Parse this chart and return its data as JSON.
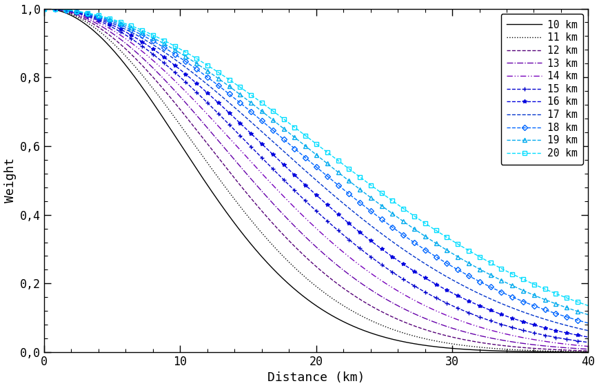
{
  "x_min": 0,
  "x_max": 40,
  "xlabel": "Distance (km)",
  "ylabel": "Weight",
  "xlim": [
    0,
    40
  ],
  "ylim": [
    0.0,
    1.0
  ],
  "xticks": [
    0,
    10,
    20,
    30,
    40
  ],
  "yticks": [
    0.0,
    0.2,
    0.4,
    0.6,
    0.8,
    1.0
  ],
  "series": [
    {
      "sigma": 10,
      "color": "#000000",
      "linestyle": "-",
      "marker": "",
      "label": "10 km"
    },
    {
      "sigma": 11,
      "color": "#000000",
      "linestyle": ":",
      "marker": "",
      "label": "11 km"
    },
    {
      "sigma": 12,
      "color": "#550077",
      "linestyle": "--",
      "marker": "",
      "label": "12 km"
    },
    {
      "sigma": 13,
      "color": "#6600AA",
      "linestyle": "-.",
      "marker": "",
      "label": "13 km"
    },
    {
      "sigma": 14,
      "color": "#7700BB",
      "linestyle": "--",
      "marker": "",
      "label": "14 km",
      "dashes": [
        6,
        2,
        1,
        2,
        1,
        2
      ]
    },
    {
      "sigma": 15,
      "color": "#0000CC",
      "linestyle": "--",
      "marker": "+",
      "label": "15 km"
    },
    {
      "sigma": 16,
      "color": "#0000DD",
      "linestyle": "--",
      "marker": "*",
      "label": "16 km"
    },
    {
      "sigma": 17,
      "color": "#0033CC",
      "linestyle": "--",
      "marker": "",
      "label": "17 km"
    },
    {
      "sigma": 18,
      "color": "#0066FF",
      "linestyle": "--",
      "marker": "D",
      "label": "18 km"
    },
    {
      "sigma": 19,
      "color": "#00AAEE",
      "linestyle": "--",
      "marker": "^",
      "label": "19 km"
    },
    {
      "sigma": 20,
      "color": "#00DDFF",
      "linestyle": "--",
      "marker": "s",
      "label": "20 km"
    }
  ],
  "marker_every": 40,
  "marker_size": 4,
  "linewidth": 1.0,
  "bg_color": "#ffffff",
  "figsize": [
    8.69,
    5.63
  ],
  "dpi": 100
}
